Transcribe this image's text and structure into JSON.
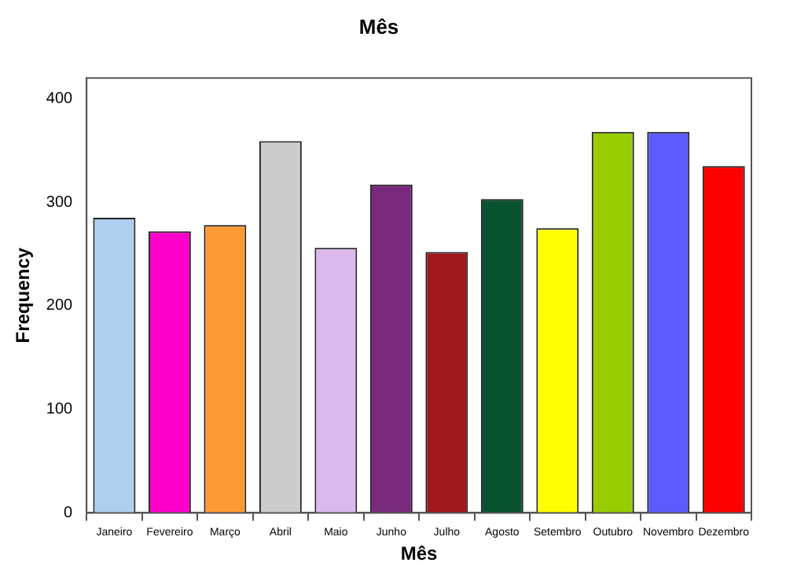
{
  "chart_data": {
    "type": "bar",
    "title": "Mês",
    "xlabel": "Mês",
    "ylabel": "Frequency",
    "categories": [
      "Janeiro",
      "Fevereiro",
      "Março",
      "Abril",
      "Maio",
      "Junho",
      "Julho",
      "Agosto",
      "Setembro",
      "Outubro",
      "Novembro",
      "Dezembro"
    ],
    "values": [
      285,
      272,
      278,
      359,
      256,
      317,
      252,
      303,
      275,
      368,
      368,
      335
    ],
    "colors": [
      "#aecfee",
      "#ff00cc",
      "#ff9933",
      "#cccccc",
      "#ddb8ee",
      "#7a2a7e",
      "#a0181c",
      "#08532f",
      "#ffff00",
      "#99cc00",
      "#5b5bff",
      "#ff0000"
    ],
    "ylim": [
      0,
      420
    ],
    "yticks": [
      0,
      100,
      200,
      300,
      400
    ],
    "grid": false,
    "legend": false
  }
}
